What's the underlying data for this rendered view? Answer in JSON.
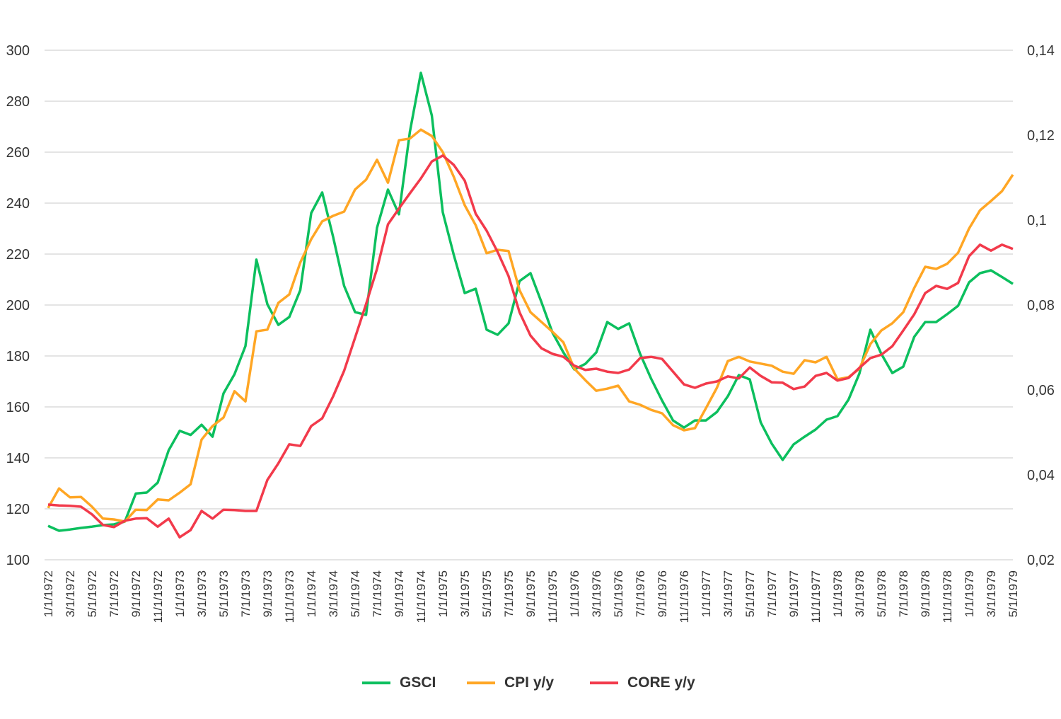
{
  "chart_data": {
    "type": "line",
    "title": "",
    "xlabel": "",
    "ylabel": "",
    "y_left": {
      "lim": [
        100,
        300
      ],
      "ticks": [
        "100",
        "120",
        "140",
        "160",
        "180",
        "200",
        "220",
        "240",
        "260",
        "280",
        "300"
      ]
    },
    "y_right": {
      "lim": [
        0.02,
        0.14
      ],
      "ticks": [
        "0,02",
        "0,04",
        "0,06",
        "0,08",
        "0,1",
        "0,12",
        "0,14"
      ]
    },
    "grid": true,
    "legend_position": "bottom",
    "x": [
      "1/1/1972",
      "2/1/1972",
      "3/1/1972",
      "4/1/1972",
      "5/1/1972",
      "6/1/1972",
      "7/1/1972",
      "8/1/1972",
      "9/1/1972",
      "10/1/1972",
      "11/1/1972",
      "12/1/1972",
      "1/1/1973",
      "2/1/1973",
      "3/1/1973",
      "4/1/1973",
      "5/1/1973",
      "6/1/1973",
      "7/1/1973",
      "8/1/1973",
      "9/1/1973",
      "10/1/1973",
      "11/1/1973",
      "12/1/1973",
      "1/1/1974",
      "2/1/1974",
      "3/1/1974",
      "4/1/1974",
      "5/1/1974",
      "6/1/1974",
      "7/1/1974",
      "8/1/1974",
      "9/1/1974",
      "10/1/1974",
      "11/1/1974",
      "12/1/1974",
      "1/1/1975",
      "2/1/1975",
      "3/1/1975",
      "4/1/1975",
      "5/1/1975",
      "6/1/1975",
      "7/1/1975",
      "8/1/1975",
      "9/1/1975",
      "10/1/1975",
      "11/1/1975",
      "12/1/1975",
      "1/1/1976",
      "2/1/1976",
      "3/1/1976",
      "4/1/1976",
      "5/1/1976",
      "6/1/1976",
      "7/1/1976",
      "8/1/1976",
      "9/1/1976",
      "10/1/1976",
      "11/1/1976",
      "12/1/1976",
      "1/1/1977",
      "2/1/1977",
      "3/1/1977",
      "4/1/1977",
      "5/1/1977",
      "6/1/1977",
      "7/1/1977",
      "8/1/1977",
      "9/1/1977",
      "10/1/1977",
      "11/1/1977",
      "12/1/1977",
      "1/1/1978",
      "2/1/1978",
      "3/1/1978",
      "4/1/1978",
      "5/1/1978",
      "6/1/1978",
      "7/1/1978",
      "8/1/1978",
      "9/1/1978",
      "10/1/1978",
      "11/1/1978",
      "12/1/1978",
      "1/1/1979",
      "2/1/1979",
      "3/1/1979",
      "4/1/1979",
      "5/1/1979"
    ],
    "series": [
      {
        "name": "GSCI",
        "axis": "left",
        "color": "#0CBF5E",
        "values": [
          113.3,
          111.4,
          111.9,
          112.5,
          113,
          113.6,
          113.9,
          115,
          126,
          126.4,
          130.3,
          143,
          150.6,
          149,
          153,
          148.3,
          165.3,
          172.8,
          183.9,
          217.8,
          200.3,
          192.2,
          195.3,
          205.8,
          236.1,
          244.2,
          226.7,
          207.5,
          197.2,
          196.1,
          230.3,
          245.3,
          235.6,
          268,
          291.1,
          274.4,
          236.4,
          219.7,
          204.7,
          206.4,
          190.3,
          188.3,
          192.8,
          209.4,
          212.5,
          201.1,
          189.2,
          181.4,
          174.7,
          176.9,
          181.4,
          193.3,
          190.6,
          192.8,
          180.8,
          171.1,
          162.5,
          154.7,
          151.9,
          154.7,
          154.7,
          158,
          164.2,
          172.5,
          170.8,
          153.9,
          145.6,
          139.2,
          145.3,
          148.3,
          151.1,
          155,
          156.4,
          162.8,
          173.1,
          190.3,
          180.8,
          173.3,
          175.8,
          187.5,
          193.3,
          193.3,
          196.4,
          199.7,
          208.9,
          212.5,
          213.6,
          211,
          208.3
        ]
      },
      {
        "name": "CPI y/y",
        "axis": "right",
        "color": "#FFA624",
        "values": [
          0.0322,
          0.0368,
          0.0347,
          0.0348,
          0.0325,
          0.0297,
          0.0295,
          0.029,
          0.0318,
          0.0317,
          0.0342,
          0.034,
          0.0358,
          0.0378,
          0.0483,
          0.0515,
          0.0535,
          0.0597,
          0.0573,
          0.0738,
          0.0742,
          0.0805,
          0.0825,
          0.09,
          0.0955,
          0.0997,
          0.101,
          0.102,
          0.1072,
          0.1095,
          0.1142,
          0.1088,
          0.1188,
          0.1192,
          0.1213,
          0.1198,
          0.116,
          0.1102,
          0.1035,
          0.0988,
          0.0922,
          0.093,
          0.0927,
          0.0835,
          0.0783,
          0.076,
          0.0737,
          0.0712,
          0.065,
          0.0623,
          0.0598,
          0.0603,
          0.061,
          0.0573,
          0.0565,
          0.0553,
          0.0545,
          0.0517,
          0.0505,
          0.051,
          0.0557,
          0.0605,
          0.0668,
          0.0678,
          0.0667,
          0.0662,
          0.0657,
          0.0643,
          0.0638,
          0.067,
          0.0665,
          0.0678,
          0.0625,
          0.063,
          0.065,
          0.0708,
          0.074,
          0.0757,
          0.0783,
          0.084,
          0.089,
          0.0885,
          0.0897,
          0.0923,
          0.098,
          0.1023,
          0.1045,
          0.1068,
          0.1107
        ]
      },
      {
        "name": "CORE y/y",
        "axis": "right",
        "color": "#F23A4B",
        "values": [
          0.033,
          0.0328,
          0.0327,
          0.0325,
          0.0307,
          0.0282,
          0.0277,
          0.0292,
          0.0297,
          0.0298,
          0.0278,
          0.0297,
          0.0253,
          0.027,
          0.0315,
          0.0297,
          0.0318,
          0.0317,
          0.0315,
          0.0315,
          0.0388,
          0.0427,
          0.0472,
          0.0468,
          0.0515,
          0.0533,
          0.0585,
          0.0645,
          0.0723,
          0.0802,
          0.0885,
          0.099,
          0.1027,
          0.1063,
          0.1098,
          0.1138,
          0.1152,
          0.113,
          0.1093,
          0.1015,
          0.0975,
          0.0925,
          0.0868,
          0.0783,
          0.0728,
          0.0698,
          0.0685,
          0.0678,
          0.0657,
          0.0647,
          0.065,
          0.0643,
          0.064,
          0.0648,
          0.0675,
          0.0678,
          0.0673,
          0.0643,
          0.0613,
          0.0605,
          0.0615,
          0.062,
          0.0632,
          0.0627,
          0.0653,
          0.0633,
          0.0618,
          0.0617,
          0.0602,
          0.0608,
          0.0633,
          0.064,
          0.0622,
          0.0628,
          0.0652,
          0.0675,
          0.0683,
          0.0703,
          0.074,
          0.0778,
          0.0828,
          0.0845,
          0.0838,
          0.0852,
          0.0915,
          0.0942,
          0.0928,
          0.0942,
          0.0932
        ]
      }
    ]
  }
}
